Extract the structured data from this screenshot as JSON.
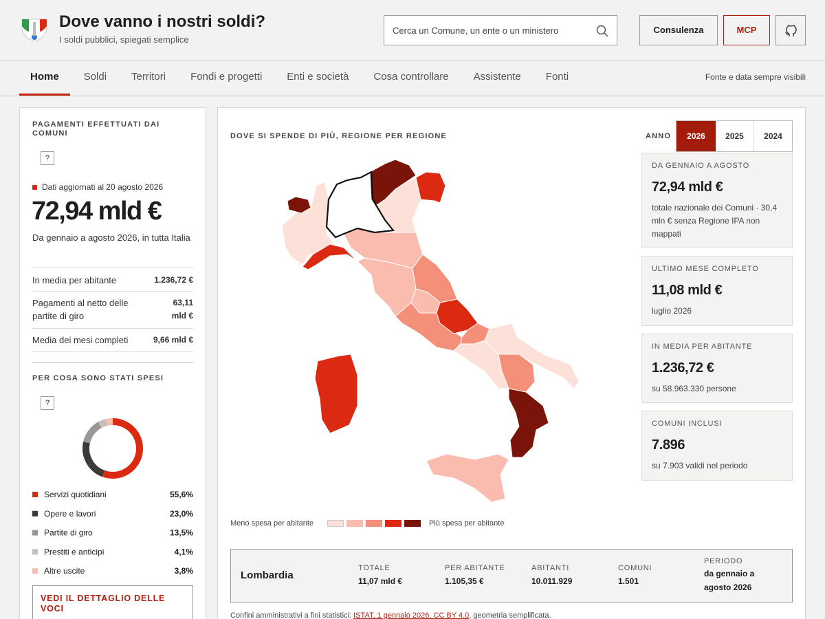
{
  "header": {
    "title": "Dove vanno i nostri soldi?",
    "subtitle": "I soldi pubblici, spiegati semplice",
    "search_placeholder": "Cerca un Comune, un ente o un ministero",
    "buttons": [
      "Consulenza",
      "MCP"
    ]
  },
  "nav": {
    "items": [
      "Home",
      "Soldi",
      "Territori",
      "Fondi e progetti",
      "Enti e società",
      "Cosa controllare",
      "Assistente",
      "Fonti"
    ],
    "note": "Fonte e data sempre visibili"
  },
  "sidebar": {
    "title": "PAGAMENTI EFFETTUATI DAI COMUNI",
    "help": "?",
    "updated": "Dati aggiornati al 20 agosto 2026",
    "total": "72,94 mld €",
    "period": "Da gennaio a agosto 2026, in tutta Italia",
    "rows": [
      [
        "In media per abitante",
        "1.236,72 €"
      ],
      [
        "Pagamenti al netto delle partite di giro",
        "63,11 mld €"
      ],
      [
        "Media dei mesi completi",
        "9,66 mld €"
      ]
    ],
    "breakdown_title": "PER COSA SONO STATI SPESI",
    "help2": "?",
    "cta": "VEDI IL DETTAGLIO DELLE VOCI"
  },
  "chart_data": {
    "type": "donut",
    "categories": [
      "Servizi quotidiani",
      "Opere e lavori",
      "Partite di giro",
      "Prestiti e anticipi",
      "Altre uscite"
    ],
    "colors": [
      "#dc2a12",
      "#3d3a38",
      "#9a9796",
      "#c2bfbe",
      "#f7bdb0"
    ],
    "values": [
      55.6,
      23.0,
      13.5,
      4.1,
      3.8
    ],
    "value_labels": [
      "55,6%",
      "23,0%",
      "13,5%",
      "4,1%",
      "3,8%"
    ]
  },
  "main": {
    "title": "DOVE SI SPENDE DI PIÙ, REGIONE PER REGIONE",
    "year_label": "ANNO",
    "years": [
      "2026",
      "2025",
      "2024"
    ],
    "cards": [
      {
        "label": "DA GENNAIO A AGOSTO",
        "value": "72,94 mld €",
        "note": "totale nazionale dei Comuni · 30,4 mln € senza Regione IPA non mappati"
      },
      {
        "label": "ULTIMO MESE COMPLETO",
        "value": "11,08 mld €",
        "note": "luglio 2026"
      },
      {
        "label": "IN MEDIA PER ABITANTE",
        "value": "1.236,72 €",
        "note": "su 58.963.330 persone"
      },
      {
        "label": "COMUNI INCLUSI",
        "value": "7.896",
        "note": "su 7.903 validi nel periodo"
      }
    ],
    "legend": {
      "low": "Meno spesa per abitante",
      "high": "Più spesa per abitante"
    },
    "region": {
      "name": "Lombardia",
      "fields": [
        [
          "TOTALE",
          "11,07 mld €"
        ],
        [
          "PER ABITANTE",
          "1.105,35 €"
        ],
        [
          "ABITANTI",
          "10.011.929"
        ],
        [
          "COMUNI",
          "1.501"
        ],
        [
          "PERIODO",
          "da gennaio a agosto 2026"
        ]
      ]
    },
    "footer": {
      "text": "Confini amministrativi a fini statistici:",
      "link": "ISTAT, 1 gennaio 2026, CC BY 4.0",
      "rest": ", geometria semplificata."
    }
  }
}
